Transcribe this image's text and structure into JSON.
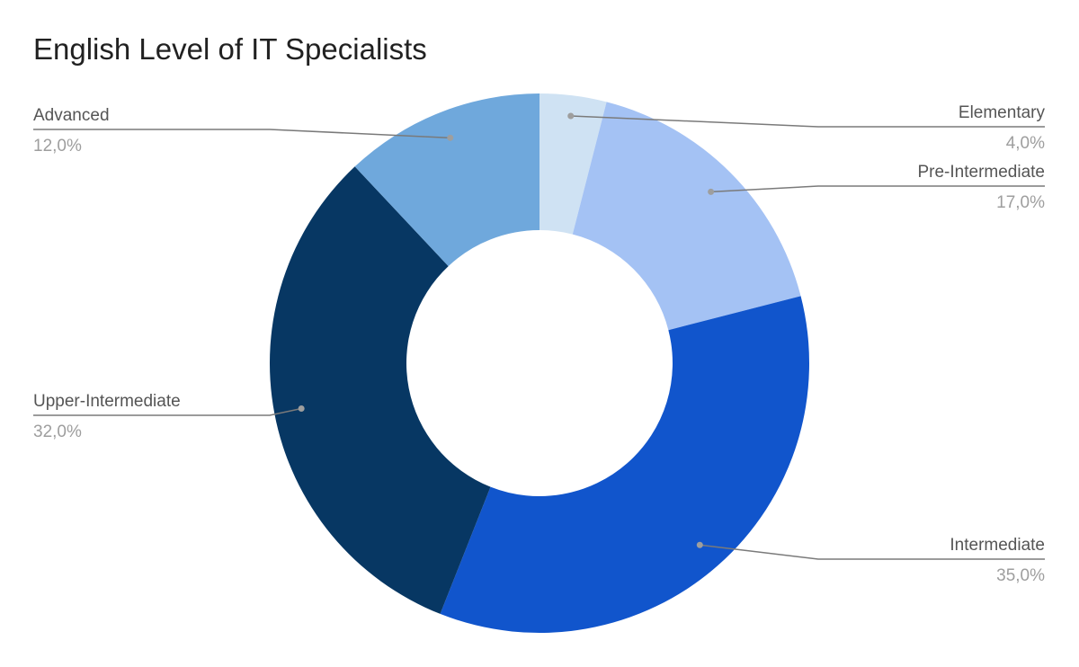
{
  "chart_data": {
    "type": "pie",
    "title": "English Level of IT Specialists",
    "hole": true,
    "slices": [
      {
        "label": "Elementary",
        "value": 4.0,
        "value_label": "4,0%",
        "color": "#cfe2f3"
      },
      {
        "label": "Pre-Intermediate",
        "value": 17.0,
        "value_label": "17,0%",
        "color": "#a4c2f4"
      },
      {
        "label": "Intermediate",
        "value": 35.0,
        "value_label": "35,0%",
        "color": "#1155cc"
      },
      {
        "label": "Upper-Intermediate",
        "value": 32.0,
        "value_label": "32,0%",
        "color": "#073763"
      },
      {
        "label": "Advanced",
        "value": 12.0,
        "value_label": "12,0%",
        "color": "#6fa8dc"
      }
    ],
    "legend": "none"
  }
}
